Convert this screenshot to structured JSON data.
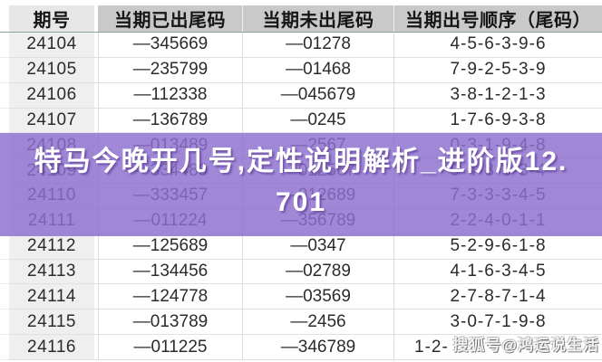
{
  "table": {
    "headers": [
      "期号",
      "当期已出尾码",
      "当期未出尾码",
      "当期出号顺序（尾码）"
    ],
    "rows": [
      {
        "issue": "24104",
        "drawn": "—345669",
        "undrawn": "—01278",
        "order": "4-5-6-3-9-6"
      },
      {
        "issue": "24105",
        "drawn": "—235799",
        "undrawn": "—01468",
        "order": "7-9-2-5-3-9"
      },
      {
        "issue": "24106",
        "drawn": "—112338",
        "undrawn": "—045679",
        "order": "3-8-1-2-1-3"
      },
      {
        "issue": "24107",
        "drawn": "—136789",
        "undrawn": "—0245",
        "order": "1-7-6-9-3-8"
      },
      {
        "issue": "24108",
        "drawn": "—013489",
        "undrawn": "—2567",
        "order": "0-3-1-9-4-8"
      },
      {
        "issue": "24109",
        "drawn": "—334489",
        "undrawn": "—012567",
        "order": "9-4-8-3-3-4"
      },
      {
        "issue": "24110",
        "drawn": "—333457",
        "undrawn": "—012689",
        "order": "7-3-3-3-4-5"
      },
      {
        "issue": "24111",
        "drawn": "—011224",
        "undrawn": "—356789",
        "order": "2-2-4-0-1-1"
      },
      {
        "issue": "24112",
        "drawn": "—125689",
        "undrawn": "—0347",
        "order": "5-2-9-6-1-8"
      },
      {
        "issue": "24113",
        "drawn": "—134456",
        "undrawn": "—02789",
        "order": "4-1-6-3-4-5"
      },
      {
        "issue": "24114",
        "drawn": "—124778",
        "undrawn": "—03569",
        "order": "2-7-8-7-1-4"
      },
      {
        "issue": "24115",
        "drawn": "—013789",
        "undrawn": "—2456",
        "order": "3-0-7-1-9-8"
      },
      {
        "issue": "24116",
        "drawn": "—011225",
        "undrawn": "—346789",
        "order": "1-2-"
      }
    ]
  },
  "overlay": {
    "title_line1": "特马今晚开几号,定性说明解析_进阶版12.",
    "title_line2": "701"
  },
  "watermark": {
    "text": "搜狐号@鸿运说生活"
  },
  "colors": {
    "banner_purple": "rgba(142,112,207,0.83)",
    "header_underline_teal": "#84a596",
    "header_gray": "#c9c9c9",
    "issue_column_gray": "#efefef",
    "grid_line": "#e0e0e0",
    "banner_text": "#ffffff"
  }
}
